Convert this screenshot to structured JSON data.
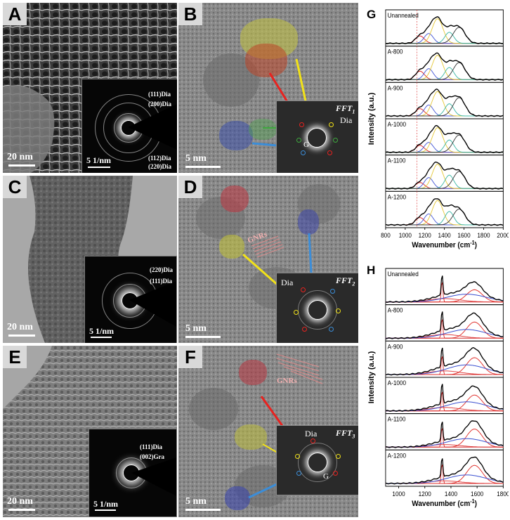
{
  "panels": {
    "A": {
      "letter": "A",
      "scale": "20 nm",
      "inset_scale": "5 1/nm",
      "labels": [
        "(111)Dia",
        "(200)Dia",
        "(112)Dia",
        "(220)Dia"
      ]
    },
    "B": {
      "letter": "B",
      "scale": "5 nm",
      "fft_label": "FFT",
      "fft_sub": "1",
      "dia": "Dia",
      "g": "G"
    },
    "C": {
      "letter": "C",
      "scale": "20 nm",
      "inset_scale": "5 1/nm",
      "labels": [
        "(220)Dia",
        "(111)Dia"
      ]
    },
    "D": {
      "letter": "D",
      "scale": "5 nm",
      "fft_label": "FFT",
      "fft_sub": "2",
      "dia": "Dia",
      "gnrs": "GNRs"
    },
    "E": {
      "letter": "E",
      "scale": "20 nm",
      "inset_scale": "5 1/nm",
      "labels": [
        "(111)Dia",
        "(002)Gra"
      ]
    },
    "F": {
      "letter": "F",
      "scale": "5 nm",
      "fft_label": "FFT",
      "fft_sub": "3",
      "dia": "Dia",
      "g": "G",
      "gnrs": "GNRs"
    }
  },
  "chart_data": [
    {
      "type": "line",
      "panel_letter": "G",
      "xlabel": "Wavenumber (cm",
      "xlabel_sup": "-1",
      "xlabel_end": ")",
      "ylabel": "Intensity (a.u.)",
      "xlim": [
        800,
        2000
      ],
      "xticks": [
        800,
        1000,
        1200,
        1400,
        1600,
        1800,
        2000
      ],
      "dashed_line_at": 1120,
      "samples": [
        "Unannealed",
        "A-800",
        "A-900",
        "A-1000",
        "A-1100",
        "A-1200"
      ],
      "components": [
        {
          "color": "#e0302c",
          "center": 1150,
          "width": 45
        },
        {
          "color": "#4a5cd8",
          "center": 1240,
          "width": 45
        },
        {
          "color": "#e6c93a",
          "center": 1330,
          "width": 55
        },
        {
          "color": "#3fb8a6",
          "center": 1450,
          "width": 45
        },
        {
          "color": "#3a3a3a",
          "center": 1550,
          "width": 60
        }
      ],
      "amplitudes": [
        [
          0.3,
          0.4,
          1.0,
          0.45,
          0.65
        ],
        [
          0.35,
          0.45,
          1.0,
          0.5,
          0.7
        ],
        [
          0.3,
          0.45,
          1.0,
          0.5,
          0.75
        ],
        [
          0.28,
          0.4,
          1.0,
          0.5,
          0.7
        ],
        [
          0.25,
          0.45,
          1.0,
          0.55,
          0.7
        ],
        [
          0.3,
          0.45,
          1.0,
          0.55,
          0.65
        ]
      ]
    },
    {
      "type": "line",
      "panel_letter": "H",
      "xlabel": "Wavenumber (cm",
      "xlabel_sup": "-1",
      "xlabel_end": ")",
      "ylabel": "Intensity (a.u.)",
      "xlim": [
        900,
        1800
      ],
      "xticks": [
        1000,
        1200,
        1400,
        1600,
        1800
      ],
      "samples": [
        "Unannealed",
        "A-800",
        "A-900",
        "A-1000",
        "A-1100",
        "A-1200"
      ],
      "components": [
        {
          "color": "#d42a2a",
          "name": "",
          "center": 1332,
          "width": 6
        },
        {
          "color": "#e04444",
          "center": 1350,
          "width": 120
        },
        {
          "color": "#e0302c",
          "center": 1580,
          "width": 60
        },
        {
          "color": "#3a4fd0",
          "center": 1520,
          "width": 150
        }
      ],
      "amplitudes": [
        [
          1.0,
          0.15,
          0.55,
          0.35
        ],
        [
          0.85,
          0.15,
          0.65,
          0.35
        ],
        [
          0.85,
          0.15,
          0.7,
          0.4
        ],
        [
          0.95,
          0.15,
          0.7,
          0.4
        ],
        [
          1.0,
          0.12,
          0.85,
          0.4
        ],
        [
          1.0,
          0.12,
          0.85,
          0.4
        ]
      ]
    }
  ]
}
